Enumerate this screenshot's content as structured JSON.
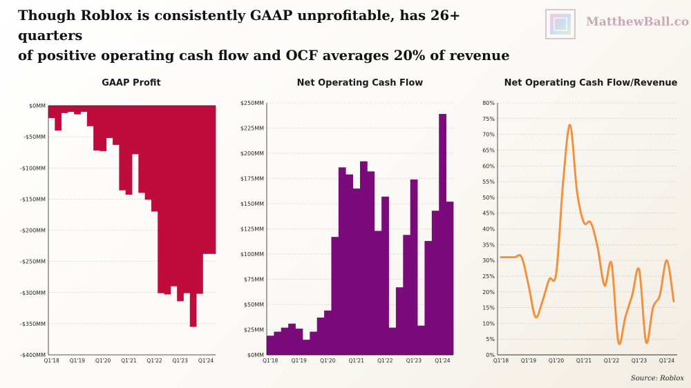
{
  "header": {
    "headline_line1": "Though Roblox is consistently GAAP unprofitable, has 26+ quarters",
    "headline_line2": "of positive operating cash flow and OCF averages 20% of revenue",
    "logo_text": "MatthewBall.co"
  },
  "source": "Source: Roblox",
  "colors": {
    "gaap": "#c00c3d",
    "ocf": "#7b0a7b",
    "ratio": "#f2913d",
    "grid": "#bdbdbd"
  },
  "chart_data": [
    {
      "type": "bar",
      "title": "GAAP Profit",
      "categories": [
        "Q1'18",
        "Q2'18",
        "Q3'18",
        "Q4'18",
        "Q1'19",
        "Q2'19",
        "Q3'19",
        "Q4'19",
        "Q1'20",
        "Q2'20",
        "Q3'20",
        "Q4'20",
        "Q1'21",
        "Q2'21",
        "Q3'21",
        "Q4'21",
        "Q1'22",
        "Q2'22",
        "Q3'22",
        "Q4'22",
        "Q1'23",
        "Q2'23",
        "Q3'23",
        "Q4'23",
        "Q1'24",
        "Q2'24"
      ],
      "values": [
        -20,
        -40,
        -12,
        -10,
        -14,
        -10,
        -33,
        -72,
        -73,
        -52,
        -63,
        -136,
        -143,
        -78,
        -140,
        -151,
        -170,
        -301,
        -303,
        -290,
        -314,
        -301,
        -355,
        -302,
        -238,
        -238
      ],
      "ylim": [
        -400,
        0
      ],
      "yticks": [
        0,
        -50,
        -100,
        -150,
        -200,
        -250,
        -300,
        -350,
        -400
      ],
      "ytick_labels": [
        "$0MM",
        "-$50MM",
        "-$100MM",
        "-$150MM",
        "-$200MM",
        "-$250MM",
        "-$300MM",
        "-$350MM",
        "-$400MM"
      ],
      "xtick_labels": [
        "Q1'18",
        "Q1'19",
        "Q1'20",
        "Q1'21",
        "Q1'22",
        "Q1'23",
        "Q1'24"
      ],
      "xtick_index": [
        0,
        4,
        8,
        12,
        16,
        20,
        24
      ]
    },
    {
      "type": "bar",
      "title": "Net Operating Cash Flow",
      "categories": [
        "Q1'18",
        "Q2'18",
        "Q3'18",
        "Q4'18",
        "Q1'19",
        "Q2'19",
        "Q3'19",
        "Q4'19",
        "Q1'20",
        "Q2'20",
        "Q3'20",
        "Q4'20",
        "Q1'21",
        "Q2'21",
        "Q3'21",
        "Q4'21",
        "Q1'22",
        "Q2'22",
        "Q3'22",
        "Q4'22",
        "Q1'23",
        "Q2'23",
        "Q3'23",
        "Q4'23",
        "Q1'24",
        "Q2'24"
      ],
      "values": [
        19,
        23,
        27,
        31,
        26,
        15,
        23,
        37,
        44,
        117,
        186,
        179,
        165,
        192,
        182,
        123,
        157,
        27,
        67,
        119,
        174,
        29,
        113,
        143,
        239,
        152
      ],
      "ylim": [
        0,
        250
      ],
      "yticks": [
        0,
        25,
        50,
        75,
        100,
        125,
        150,
        175,
        200,
        225,
        250
      ],
      "ytick_labels": [
        "$0MM",
        "$25MM",
        "$50MM",
        "$75MM",
        "$100MM",
        "$125MM",
        "$150MM",
        "$175MM",
        "$200MM",
        "$225MM",
        "$250MM"
      ],
      "xtick_labels": [
        "Q1'18",
        "Q1'19",
        "Q1'20",
        "Q1'21",
        "Q1'22",
        "Q1'23",
        "Q1'24"
      ],
      "xtick_index": [
        0,
        4,
        8,
        12,
        16,
        20,
        24
      ]
    },
    {
      "type": "line",
      "title": "Net Operating Cash Flow/Revenue",
      "categories": [
        "Q1'18",
        "Q2'18",
        "Q3'18",
        "Q4'18",
        "Q1'19",
        "Q2'19",
        "Q3'19",
        "Q4'19",
        "Q1'20",
        "Q2'20",
        "Q3'20",
        "Q4'20",
        "Q1'21",
        "Q2'21",
        "Q3'21",
        "Q4'21",
        "Q1'22",
        "Q2'22",
        "Q3'22",
        "Q4'22",
        "Q1'23",
        "Q2'23",
        "Q3'23",
        "Q4'23",
        "Q1'24",
        "Q2'24"
      ],
      "values": [
        31,
        31,
        31,
        31,
        22,
        12,
        17,
        24,
        26,
        55,
        73,
        52,
        42,
        42,
        34,
        22,
        29,
        4,
        12,
        19,
        27,
        4,
        15,
        19,
        30,
        17
      ],
      "ylim": [
        0,
        80
      ],
      "yticks": [
        0,
        5,
        10,
        15,
        20,
        25,
        30,
        35,
        40,
        45,
        50,
        55,
        60,
        65,
        70,
        75,
        80
      ],
      "ytick_labels": [
        "0%",
        "5%",
        "10%",
        "15%",
        "20%",
        "25%",
        "30%",
        "35%",
        "40%",
        "45%",
        "50%",
        "55%",
        "60%",
        "65%",
        "70%",
        "75%",
        "80%"
      ],
      "xtick_labels": [
        "Q1'18",
        "Q1'19",
        "Q1'20",
        "Q1'21",
        "Q1'22",
        "Q1'23",
        "Q1'24"
      ],
      "xtick_index": [
        0,
        4,
        8,
        12,
        16,
        20,
        24
      ]
    }
  ]
}
